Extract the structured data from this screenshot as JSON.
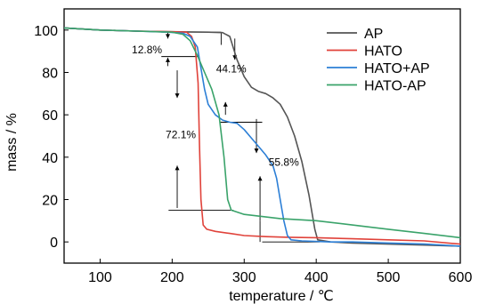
{
  "chart_data": {
    "type": "line",
    "xlabel": "temperature / ℃",
    "ylabel": "mass / %",
    "xlim": [
      50,
      600
    ],
    "ylim": [
      -10,
      110
    ],
    "xticks": [
      100,
      200,
      300,
      400,
      500,
      600
    ],
    "yticks": [
      0,
      20,
      40,
      60,
      80,
      100
    ],
    "legend_position": "top-right",
    "grid": false,
    "series": [
      {
        "name": "AP",
        "color": "#555555",
        "points": [
          [
            50,
            101
          ],
          [
            100,
            100
          ],
          [
            150,
            99.5
          ],
          [
            200,
            99.2
          ],
          [
            250,
            99
          ],
          [
            270,
            98.8
          ],
          [
            280,
            97
          ],
          [
            290,
            86
          ],
          [
            300,
            78
          ],
          [
            310,
            73
          ],
          [
            320,
            71
          ],
          [
            330,
            70
          ],
          [
            340,
            68
          ],
          [
            350,
            65
          ],
          [
            360,
            59
          ],
          [
            370,
            50
          ],
          [
            380,
            38
          ],
          [
            390,
            22
          ],
          [
            398,
            6
          ],
          [
            402,
            1
          ],
          [
            420,
            0
          ],
          [
            450,
            -0.5
          ],
          [
            500,
            -1
          ],
          [
            550,
            -1.5
          ],
          [
            600,
            -2
          ]
        ]
      },
      {
        "name": "HATO",
        "color": "#e0423a",
        "points": [
          [
            50,
            101
          ],
          [
            100,
            100
          ],
          [
            150,
            99.5
          ],
          [
            200,
            99.2
          ],
          [
            220,
            99
          ],
          [
            227,
            97
          ],
          [
            232,
            92
          ],
          [
            236,
            75
          ],
          [
            238,
            45
          ],
          [
            240,
            20
          ],
          [
            243,
            8
          ],
          [
            248,
            6
          ],
          [
            260,
            5
          ],
          [
            280,
            4
          ],
          [
            300,
            3
          ],
          [
            330,
            2.5
          ],
          [
            360,
            2.2
          ],
          [
            400,
            2
          ],
          [
            450,
            1.5
          ],
          [
            500,
            1
          ],
          [
            550,
            0.5
          ],
          [
            600,
            -1
          ]
        ]
      },
      {
        "name": "HATO+AP",
        "color": "#2c7fd6",
        "points": [
          [
            50,
            101
          ],
          [
            100,
            100
          ],
          [
            150,
            99.5
          ],
          [
            195,
            99
          ],
          [
            215,
            98.5
          ],
          [
            225,
            97
          ],
          [
            235,
            92
          ],
          [
            240,
            82
          ],
          [
            245,
            72
          ],
          [
            250,
            65
          ],
          [
            260,
            60
          ],
          [
            270,
            57.5
          ],
          [
            280,
            56.5
          ],
          [
            290,
            56
          ],
          [
            300,
            53
          ],
          [
            310,
            49
          ],
          [
            320,
            45
          ],
          [
            330,
            41
          ],
          [
            340,
            36
          ],
          [
            345,
            30
          ],
          [
            350,
            20
          ],
          [
            355,
            10
          ],
          [
            360,
            3
          ],
          [
            365,
            1
          ],
          [
            380,
            0.5
          ],
          [
            420,
            0
          ],
          [
            450,
            0
          ],
          [
            500,
            -0.5
          ],
          [
            550,
            -1
          ],
          [
            600,
            -2
          ]
        ]
      },
      {
        "name": "HATO-AP",
        "color": "#3aa36a",
        "points": [
          [
            50,
            101
          ],
          [
            100,
            100
          ],
          [
            150,
            99.5
          ],
          [
            200,
            99
          ],
          [
            215,
            98
          ],
          [
            225,
            95
          ],
          [
            235,
            88
          ],
          [
            245,
            80
          ],
          [
            255,
            72
          ],
          [
            265,
            60
          ],
          [
            272,
            40
          ],
          [
            277,
            20
          ],
          [
            282,
            15
          ],
          [
            300,
            13
          ],
          [
            350,
            11
          ],
          [
            400,
            10
          ],
          [
            450,
            8
          ],
          [
            500,
            6
          ],
          [
            550,
            4
          ],
          [
            600,
            2
          ]
        ]
      }
    ],
    "annotations": [
      {
        "label": "12.8%",
        "x": 165,
        "y": 89
      },
      {
        "label": "44.1%",
        "x": 282,
        "y": 80
      },
      {
        "label": "72.1%",
        "x": 212,
        "y": 49
      },
      {
        "label": "55.8%",
        "x": 355,
        "y": 36
      }
    ]
  }
}
